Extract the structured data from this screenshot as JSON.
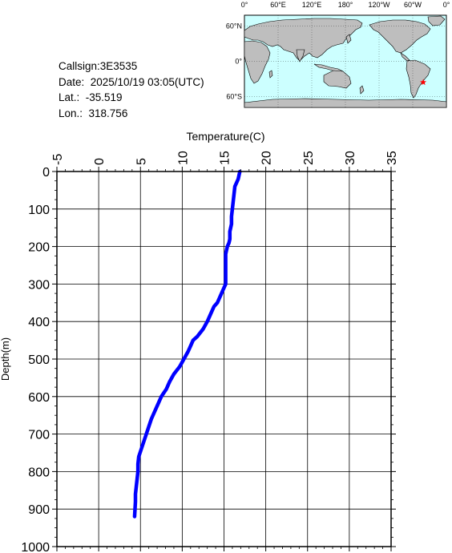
{
  "info": {
    "callsign": "Callsign:3E3535",
    "date": "Date:  2025/10/19 03:05(UTC)",
    "lat": "Lat.:  -35.519",
    "lon": "Lon.:  318.756"
  },
  "map": {
    "lon_labels": [
      "0°",
      "60°E",
      "120°E",
      "180°",
      "120°W",
      "60°W",
      "0°"
    ],
    "lat_labels": [
      "60°N",
      "0°",
      "60°S"
    ],
    "ocean_color": "#ccffff",
    "land_color": "#bebebe",
    "marker": {
      "lat": -35.519,
      "lon": 318.756,
      "color": "#ff0000",
      "symbol": "star"
    }
  },
  "chart_data": {
    "type": "line",
    "xlabel": "Temperature(C)",
    "ylabel": "Depth(m)",
    "xlim": [
      -5,
      35
    ],
    "ylim": [
      0,
      1000
    ],
    "y_inverted": true,
    "x_ticks": [
      -5,
      0,
      5,
      10,
      15,
      20,
      25,
      30,
      35
    ],
    "y_ticks": [
      0,
      100,
      200,
      300,
      400,
      500,
      600,
      700,
      800,
      900,
      1000
    ],
    "grid": true,
    "series": [
      {
        "color": "#0000ff",
        "x": [
          16.9,
          16.8,
          16.7,
          16.5,
          16.3,
          16.2,
          16.1,
          16.0,
          15.9,
          15.9,
          15.8,
          15.7,
          15.7,
          15.7,
          15.6,
          15.4,
          15.3,
          15.2,
          15.2,
          15.2,
          15.2,
          15.2,
          15.0,
          14.8,
          14.6,
          14.4,
          14.2,
          13.8,
          13.4,
          13.0,
          12.5,
          11.8,
          11.3,
          11.1,
          10.7,
          10.2,
          9.7,
          9.0,
          8.5,
          8.1,
          7.5,
          7.1,
          6.7,
          6.3,
          6.0,
          5.7,
          5.4,
          5.1,
          4.8,
          4.7,
          4.7,
          4.6,
          4.5,
          4.4,
          4.4,
          4.3
        ],
        "y": [
          0,
          10,
          20,
          30,
          40,
          60,
          80,
          100,
          120,
          140,
          150,
          160,
          170,
          180,
          190,
          200,
          210,
          220,
          240,
          260,
          280,
          300,
          310,
          320,
          330,
          340,
          350,
          360,
          380,
          400,
          420,
          440,
          450,
          460,
          480,
          500,
          520,
          540,
          560,
          580,
          600,
          620,
          640,
          660,
          680,
          700,
          720,
          740,
          760,
          780,
          800,
          820,
          840,
          860,
          880,
          920
        ]
      }
    ]
  }
}
